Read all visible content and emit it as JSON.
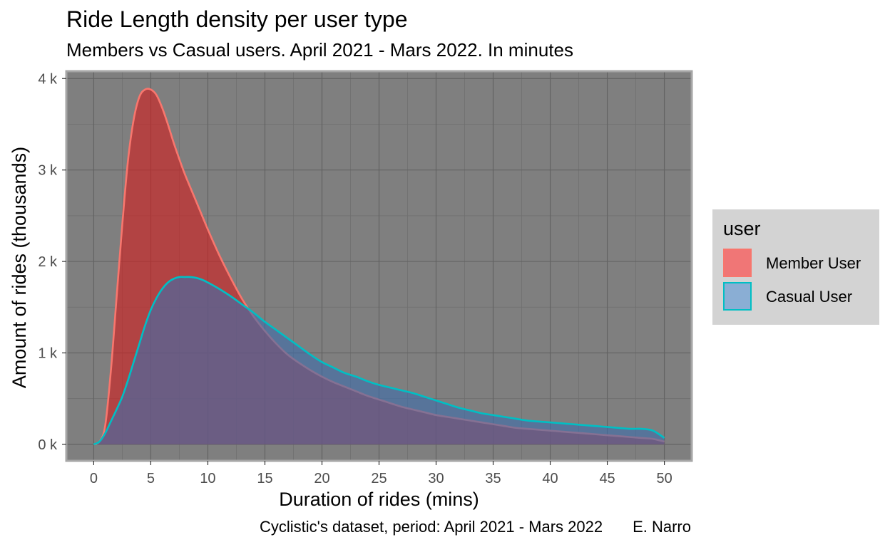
{
  "chart_data": {
    "type": "area",
    "title": "Ride Length density per user type",
    "subtitle": "Members vs Casual users. April 2021 - Mars 2022. In minutes",
    "xlabel": "Duration of rides (mins)",
    "ylabel": "Amount of rides (thousands)",
    "caption": "Cyclistic's dataset, period: April 2021 - Mars 2022",
    "caption_author": "E. Narro",
    "xlim": [
      -2.4,
      52.4
    ],
    "ylim": [
      -0.18,
      4.08
    ],
    "x_ticks": [
      0,
      5,
      10,
      15,
      20,
      25,
      30,
      35,
      40,
      45,
      50
    ],
    "x_tick_labels": [
      "0",
      "5",
      "10",
      "15",
      "20",
      "25",
      "30",
      "35",
      "40",
      "45",
      "50"
    ],
    "y_ticks": [
      0,
      1,
      2,
      3,
      4
    ],
    "y_tick_labels": [
      "0 k",
      "1 k",
      "2 k",
      "3 k",
      "4 k"
    ],
    "grid": true,
    "panel_background": "#7f7f7f",
    "legend": {
      "title": "user",
      "placement": "right",
      "entries": [
        "Member User",
        "Casual User"
      ]
    },
    "series": [
      {
        "name": "Member User",
        "line_color": "#f8766d",
        "fill_color": "#d21e1e",
        "fill_opacity": 0.62,
        "x": [
          0,
          0.5,
          1,
          1.5,
          2,
          2.5,
          3,
          3.5,
          4,
          4.5,
          5,
          5.5,
          6,
          6.5,
          7,
          7.5,
          8,
          9,
          10,
          11,
          12,
          13,
          14,
          15,
          16,
          17,
          18,
          19,
          20,
          21,
          22,
          23,
          24,
          25,
          26,
          27,
          28,
          29,
          30,
          31,
          32,
          33,
          34,
          35,
          36,
          37,
          38,
          39,
          40,
          41,
          42,
          43,
          44,
          45,
          46,
          47,
          48,
          49,
          50
        ],
        "values": [
          0,
          0.03,
          0.2,
          0.8,
          1.6,
          2.4,
          3.1,
          3.55,
          3.8,
          3.88,
          3.88,
          3.82,
          3.68,
          3.5,
          3.3,
          3.12,
          2.95,
          2.65,
          2.35,
          2.07,
          1.82,
          1.59,
          1.4,
          1.24,
          1.1,
          0.98,
          0.89,
          0.81,
          0.74,
          0.68,
          0.63,
          0.58,
          0.53,
          0.49,
          0.45,
          0.41,
          0.38,
          0.35,
          0.32,
          0.3,
          0.28,
          0.26,
          0.24,
          0.22,
          0.2,
          0.18,
          0.17,
          0.16,
          0.15,
          0.14,
          0.13,
          0.12,
          0.11,
          0.1,
          0.09,
          0.08,
          0.07,
          0.06,
          0.03
        ]
      },
      {
        "name": "Casual User",
        "line_color": "#00bfc4",
        "fill_color": "#3f6eab",
        "fill_opacity": 0.62,
        "x": [
          0,
          0.5,
          1,
          1.5,
          2,
          2.5,
          3,
          3.5,
          4,
          4.5,
          5,
          5.5,
          6,
          6.5,
          7,
          7.5,
          8,
          8.5,
          9,
          9.5,
          10,
          11,
          12,
          13,
          14,
          15,
          16,
          17,
          18,
          19,
          20,
          21,
          22,
          23,
          24,
          25,
          26,
          27,
          28,
          29,
          30,
          31,
          32,
          33,
          34,
          35,
          36,
          37,
          38,
          39,
          40,
          41,
          42,
          43,
          44,
          45,
          46,
          47,
          48,
          49,
          50
        ],
        "values": [
          0,
          0.03,
          0.12,
          0.25,
          0.38,
          0.52,
          0.7,
          0.9,
          1.1,
          1.3,
          1.47,
          1.6,
          1.7,
          1.77,
          1.81,
          1.83,
          1.83,
          1.83,
          1.82,
          1.8,
          1.77,
          1.7,
          1.62,
          1.53,
          1.44,
          1.34,
          1.25,
          1.16,
          1.07,
          0.98,
          0.9,
          0.84,
          0.78,
          0.74,
          0.69,
          0.65,
          0.62,
          0.59,
          0.56,
          0.52,
          0.48,
          0.44,
          0.4,
          0.37,
          0.34,
          0.32,
          0.3,
          0.28,
          0.26,
          0.25,
          0.24,
          0.23,
          0.22,
          0.21,
          0.2,
          0.19,
          0.18,
          0.17,
          0.17,
          0.15,
          0.07
        ]
      }
    ]
  }
}
